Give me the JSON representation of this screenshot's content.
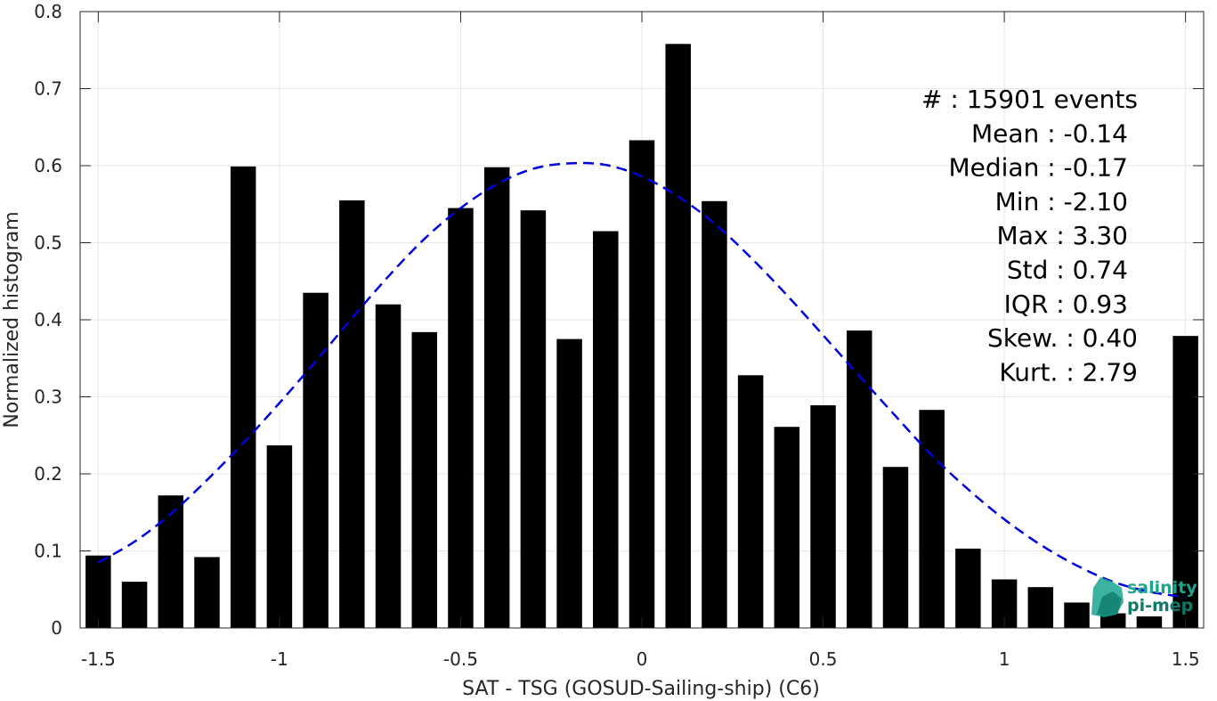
{
  "chart_data": {
    "type": "bar",
    "xlabel": "SAT - TSG (GOSUD-Sailing-ship) (C6)",
    "ylabel": "Normalized histogram",
    "xlim": [
      -1.55,
      1.55
    ],
    "ylim": [
      0,
      0.8
    ],
    "x_ticks": [
      -1.5,
      -1,
      -0.5,
      0,
      0.5,
      1,
      1.5
    ],
    "x_tick_labels": [
      "-1.5",
      "-1",
      "-0.5",
      "0",
      "0.5",
      "1",
      "1.5"
    ],
    "y_ticks": [
      0,
      0.1,
      0.2,
      0.3,
      0.4,
      0.5,
      0.6,
      0.7,
      0.8
    ],
    "y_tick_labels": [
      "0",
      "0.1",
      "0.2",
      "0.3",
      "0.4",
      "0.5",
      "0.6",
      "0.7",
      "0.8"
    ],
    "grid": true,
    "bar_color": "#000000",
    "fit_color": "#0000e0",
    "bins": [
      -1.5,
      -1.4,
      -1.3,
      -1.2,
      -1.1,
      -1.0,
      -0.9,
      -0.8,
      -0.7,
      -0.6,
      -0.5,
      -0.4,
      -0.3,
      -0.2,
      -0.1,
      0.0,
      0.1,
      0.2,
      0.3,
      0.4,
      0.5,
      0.6,
      0.7,
      0.8,
      0.9,
      1.0,
      1.1,
      1.2,
      1.3,
      1.4,
      1.5
    ],
    "values": [
      0.094,
      0.06,
      0.172,
      0.092,
      0.599,
      0.237,
      0.435,
      0.555,
      0.42,
      0.384,
      0.545,
      0.598,
      0.542,
      0.375,
      0.515,
      0.633,
      0.758,
      0.554,
      0.328,
      0.261,
      0.289,
      0.386,
      0.209,
      0.283,
      0.103,
      0.063,
      0.053,
      0.033,
      0.019,
      0.015,
      0.379
    ],
    "fit_curve": {
      "style": "dashed",
      "x": [
        -1.5,
        -1.4,
        -1.3,
        -1.2,
        -1.1,
        -1.0,
        -0.9,
        -0.8,
        -0.7,
        -0.6,
        -0.5,
        -0.4,
        -0.3,
        -0.2,
        -0.1,
        0.0,
        0.1,
        0.2,
        0.3,
        0.4,
        0.5,
        0.6,
        0.7,
        0.8,
        0.9,
        1.0,
        1.1,
        1.2,
        1.3,
        1.4,
        1.5
      ],
      "y": [
        0.085,
        0.112,
        0.148,
        0.192,
        0.24,
        0.292,
        0.346,
        0.402,
        0.456,
        0.505,
        0.545,
        0.576,
        0.596,
        0.603,
        0.601,
        0.586,
        0.56,
        0.525,
        0.481,
        0.432,
        0.38,
        0.327,
        0.275,
        0.224,
        0.18,
        0.141,
        0.108,
        0.081,
        0.06,
        0.047,
        0.04
      ]
    },
    "annotations": [
      "#  : 15901 events",
      "Mean : -0.14",
      "Median : -0.17",
      "Min : -2.10",
      "Max : 3.30",
      "Std : 0.74",
      "IQR : 0.93",
      "Skew. : 0.40",
      "Kurt. : 2.79"
    ]
  },
  "logo": {
    "line1": "salinity",
    "line2": "pi-mep",
    "color": "#1aa58f"
  }
}
